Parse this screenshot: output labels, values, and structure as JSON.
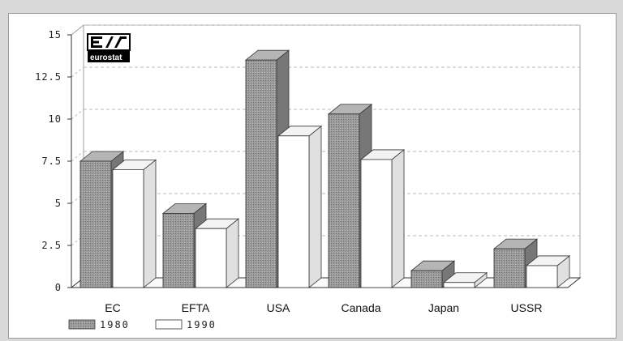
{
  "chart_data": {
    "type": "bar",
    "categories": [
      "EC",
      "EFTA",
      "USA",
      "Canada",
      "Japan",
      "USSR"
    ],
    "series": [
      {
        "name": "1980",
        "values": [
          7.5,
          4.4,
          13.5,
          10.3,
          1.0,
          2.3
        ]
      },
      {
        "name": "1990",
        "values": [
          7.0,
          3.5,
          9.0,
          7.6,
          0.3,
          1.3
        ]
      }
    ],
    "yticks": [
      "0",
      "2.5",
      "5",
      "7.5",
      "10",
      "12.5",
      "15"
    ],
    "ylim": [
      0,
      15
    ],
    "grid": true,
    "legend_position": "bottom-left"
  },
  "logo": {
    "name": "eurostat",
    "text": "eurostat"
  },
  "colors": {
    "series_1980_fill": "#9a9a9a",
    "series_1980_top": "#b5b5b5",
    "series_1980_side": "#777777",
    "series_1990_fill": "#ffffff",
    "series_1990_top": "#f3f3f3",
    "series_1990_side": "#e0e0e0",
    "stroke": "#333333",
    "grid": "#b8b8b8"
  }
}
